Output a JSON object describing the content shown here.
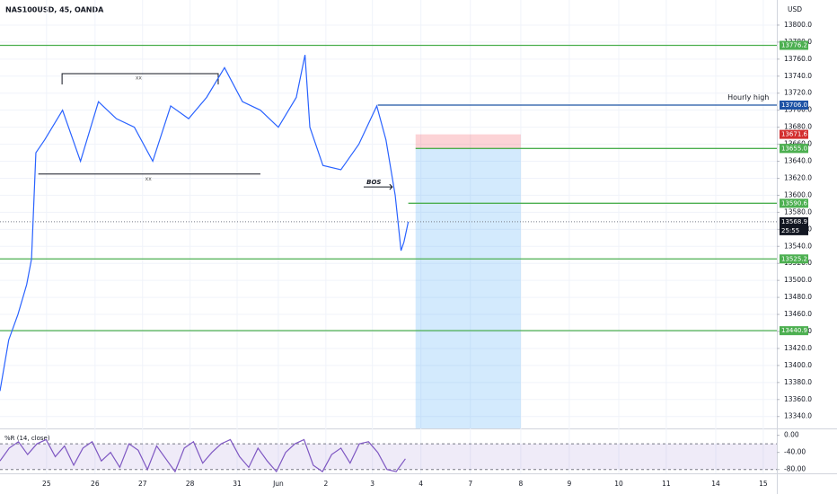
{
  "header": {
    "symbol": "NAS100USD, 45, OANDA",
    "currency": "USD"
  },
  "chart_data": [
    {
      "type": "line",
      "xlim": [
        -0.96,
        15.06
      ],
      "ylim": [
        13326,
        13829.5
      ],
      "xticks": [
        {
          "value": 0,
          "label": "25"
        },
        {
          "value": 1,
          "label": "26"
        },
        {
          "value": 1.98,
          "label": "27"
        },
        {
          "value": 2.96,
          "label": "28"
        },
        {
          "value": 3.93,
          "label": "31"
        },
        {
          "value": 4.78,
          "label": "Jun"
        },
        {
          "value": 5.76,
          "label": "2"
        },
        {
          "value": 6.72,
          "label": "3"
        },
        {
          "value": 7.72,
          "label": "4"
        },
        {
          "value": 8.74,
          "label": "7"
        },
        {
          "value": 9.78,
          "label": "8"
        },
        {
          "value": 10.78,
          "label": "9"
        },
        {
          "value": 11.8,
          "label": "10"
        },
        {
          "value": 12.78,
          "label": "11"
        },
        {
          "value": 13.8,
          "label": "14"
        },
        {
          "value": 14.78,
          "label": "15"
        }
      ],
      "yticks": [
        {
          "value": 13340,
          "label": "13340.0"
        },
        {
          "value": 13360,
          "label": "13360.0"
        },
        {
          "value": 13380,
          "label": "13380.0"
        },
        {
          "value": 13400,
          "label": "13400.0"
        },
        {
          "value": 13420,
          "label": "13420.0"
        },
        {
          "value": 13440,
          "label": "13440.0"
        },
        {
          "value": 13460,
          "label": "13460.0"
        },
        {
          "value": 13480,
          "label": "13480.0"
        },
        {
          "value": 13500,
          "label": "13500.0"
        },
        {
          "value": 13520,
          "label": "13520.0"
        },
        {
          "value": 13540,
          "label": "13540.0"
        },
        {
          "value": 13560,
          "label": "13560.0"
        },
        {
          "value": 13580,
          "label": "13580.0"
        },
        {
          "value": 13600,
          "label": "13600.0"
        },
        {
          "value": 13620,
          "label": "13620.0"
        },
        {
          "value": 13640,
          "label": "13640.0"
        },
        {
          "value": 13660,
          "label": "13660.0"
        },
        {
          "value": 13680,
          "label": "13680.0"
        },
        {
          "value": 13700,
          "label": "13700.0"
        },
        {
          "value": 13720,
          "label": "13720.0"
        },
        {
          "value": 13740,
          "label": "13740.0"
        },
        {
          "value": 13760,
          "label": "13760.0"
        },
        {
          "value": 13780,
          "label": "13780.0"
        },
        {
          "value": 13800,
          "label": "13800.0"
        }
      ],
      "x": [
        -0.96,
        -0.78,
        -0.59,
        -0.41,
        -0.31,
        -0.22,
        -0.04,
        0.33,
        0.7,
        1.07,
        1.44,
        1.81,
        2.19,
        2.56,
        2.93,
        3.3,
        3.67,
        4.04,
        4.41,
        4.78,
        5.15,
        5.33,
        5.43,
        5.7,
        6.07,
        6.44,
        6.81,
        7.0,
        7.19,
        7.31,
        7.37,
        7.46
      ],
      "series": [
        {
          "name": "NAS100USD",
          "color": "#2962ff",
          "values": [
            13370,
            13430,
            13460,
            13495,
            13525,
            13650,
            13665,
            13700,
            13640,
            13710,
            13690,
            13680,
            13640,
            13705,
            13690,
            13715,
            13750,
            13710,
            13700,
            13680,
            13715,
            13765,
            13680,
            13635,
            13630,
            13660,
            13705,
            13665,
            13600,
            13535,
            13545,
            13568.9
          ]
        }
      ],
      "levels": [
        {
          "value": 13776.2,
          "label": "13776.2",
          "color": "#4caf50",
          "x_start": -0.96
        },
        {
          "value": 13706.0,
          "label": "13706.0",
          "color": "#1e53a5",
          "x_start": 6.83
        },
        {
          "value": 13671.6,
          "label": "13671.6",
          "color": "#d32f2f"
        },
        {
          "value": 13655.2,
          "label": "13655.2",
          "color": "#4caf50"
        },
        {
          "value": 13655.0,
          "label": "13655.0",
          "color": "#4caf50",
          "x_start": 7.61
        },
        {
          "value": 13590.6,
          "label": "13590.6",
          "color": "#4caf50",
          "x_start": 7.46
        },
        {
          "value": 13525.2,
          "label": "13525.2",
          "color": "#4caf50",
          "x_start": -0.96
        },
        {
          "value": 13440.9,
          "label": "13440.9",
          "color": "#4caf50",
          "x_start": -0.96
        }
      ],
      "last_price": {
        "value": 13568.9,
        "label": "13568.9",
        "countdown": "25:55"
      },
      "position": {
        "entry": 13655.2,
        "stop": 13671.6,
        "target": 13326,
        "x_from": 7.61,
        "x_to": 9.78
      },
      "annotations": [
        {
          "text": "Hourly high",
          "x": 14.9,
          "y": 13715
        },
        {
          "text": "xx",
          "x": 1.9,
          "y": 13743,
          "x0": 0.32,
          "x1": 3.54,
          "kind": "box-top"
        },
        {
          "text": "xx",
          "x": 2.1,
          "y": 13625,
          "x0": -0.17,
          "x1": 4.41,
          "kind": "line"
        },
        {
          "text": "BOS",
          "x": 6.75,
          "y": 13613,
          "x0": 6.54,
          "x1": 7.13,
          "kind": "arrow"
        }
      ]
    },
    {
      "type": "line",
      "title": "%R (14, close)",
      "ylim": [
        -89,
        14
      ],
      "yticks": [
        {
          "value": 0,
          "label": "0.00"
        },
        {
          "value": -40,
          "label": "-40.00"
        },
        {
          "value": -80,
          "label": "-80.00"
        }
      ],
      "band": [
        -20,
        -80
      ],
      "x": [
        -0.96,
        -0.77,
        -0.58,
        -0.39,
        -0.2,
        -0.01,
        0.18,
        0.37,
        0.56,
        0.75,
        0.94,
        1.13,
        1.32,
        1.51,
        1.7,
        1.89,
        2.08,
        2.27,
        2.46,
        2.65,
        2.84,
        3.03,
        3.22,
        3.41,
        3.6,
        3.79,
        3.98,
        4.17,
        4.36,
        4.55,
        4.74,
        4.93,
        5.12,
        5.31,
        5.5,
        5.69,
        5.88,
        6.07,
        6.26,
        6.45,
        6.64,
        6.83,
        7.02,
        7.21,
        7.4
      ],
      "series": [
        {
          "name": "%R",
          "color": "#7e57c2",
          "values": [
            -60,
            -30,
            -15,
            -45,
            -20,
            -10,
            -50,
            -25,
            -70,
            -30,
            -15,
            -60,
            -40,
            -75,
            -20,
            -35,
            -80,
            -25,
            -55,
            -85,
            -30,
            -15,
            -65,
            -40,
            -20,
            -10,
            -50,
            -75,
            -30,
            -60,
            -85,
            -40,
            -20,
            -10,
            -70,
            -85,
            -45,
            -30,
            -65,
            -20,
            -15,
            -40,
            -80,
            -85,
            -55
          ]
        }
      ]
    }
  ]
}
